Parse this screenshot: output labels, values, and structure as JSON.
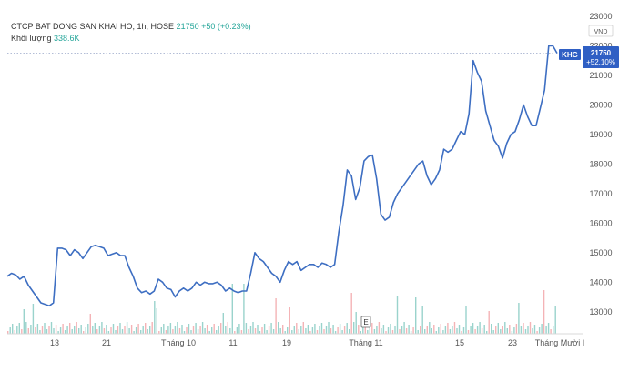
{
  "header": {
    "symbol_line": "CTCP BAT DONG SAN KHAI HO, 1h, HOSE",
    "price": "21750",
    "change": "+50 (+0.23%)",
    "volume_label": "Khối lượng",
    "volume_value": "338.6K"
  },
  "badge": {
    "ticker": "KHG",
    "price": "21750",
    "pct": "+52.10%",
    "currency": "VND"
  },
  "marker": "E",
  "colors": {
    "line": "#3d6ec2",
    "badge": "#2f5fc4",
    "vol_up": "#9ad3cc",
    "vol_down": "#f4b3b6"
  },
  "chart_data": {
    "type": "line",
    "ylim": [
      12500,
      23000
    ],
    "y_ticks": [
      13000,
      14000,
      15000,
      16000,
      17000,
      18000,
      19000,
      20000,
      21000,
      22000,
      23000
    ],
    "x_ticks": [
      "13",
      "21",
      "Tháng 10",
      "11",
      "19",
      "Tháng 11",
      "15",
      "23",
      "Tháng Mười I"
    ],
    "series": [
      {
        "values": [
          14200,
          14300,
          14250,
          14100,
          14200,
          13900,
          13700,
          13500,
          13300,
          13250,
          13200,
          13300,
          15150,
          15150,
          15100,
          14900,
          15100,
          15000,
          14800,
          15000,
          15200,
          15250,
          15200,
          15150,
          14900,
          14950,
          15000,
          14900,
          14900,
          14500,
          14200,
          13800,
          13650,
          13700,
          13600,
          13700,
          14100,
          14000,
          13800,
          13750,
          13500,
          13700,
          13800,
          13700,
          13800,
          14000,
          13900,
          14000,
          13950,
          13950,
          14000,
          13900,
          13700,
          13800,
          13700,
          13650,
          13700,
          13700,
          14300,
          15000,
          14800,
          14700,
          14500,
          14300,
          14200,
          14000,
          14400,
          14700,
          14600,
          14700,
          14400,
          14500,
          14600,
          14600,
          14500,
          14650,
          14600,
          14500,
          14600,
          15700,
          16600,
          17800,
          17600,
          16800,
          17200,
          18100,
          18250,
          18300,
          17500,
          16300,
          16100,
          16200,
          16700,
          17000,
          17200,
          17400,
          17600,
          17800,
          18000,
          18100,
          17600,
          17300,
          17500,
          17800,
          18500,
          18400,
          18500,
          18800,
          19100,
          19000,
          19700,
          21500,
          21100,
          20800,
          19800,
          19300,
          18800,
          18600,
          18200,
          18700,
          19000,
          19100,
          19500,
          20000,
          19600,
          19300,
          19300,
          19900,
          20500,
          22000,
          22000,
          21750
        ]
      }
    ]
  }
}
